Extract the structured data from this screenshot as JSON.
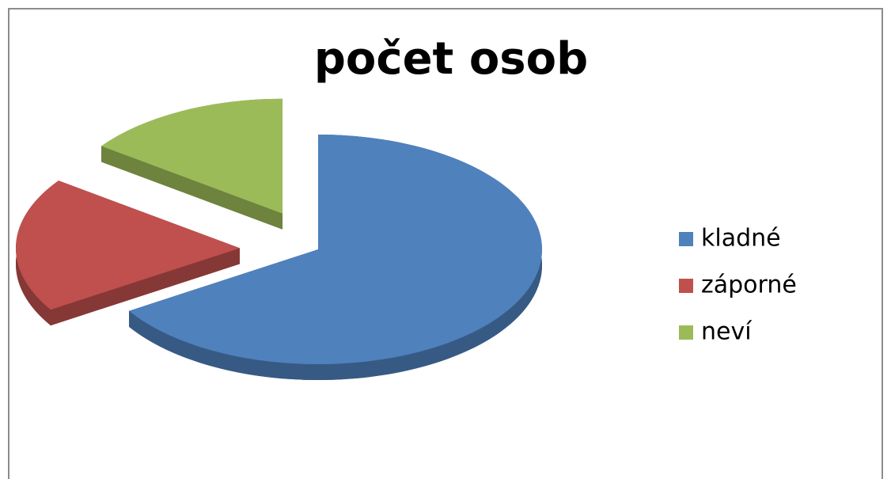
{
  "chart_data": {
    "type": "pie",
    "title": "počet osob",
    "categories": [
      "kladné",
      "záporné",
      "neví"
    ],
    "values": [
      66,
      19,
      15
    ],
    "colors": [
      "#4f81bd",
      "#c0504d",
      "#9bbb59"
    ],
    "legend": "right"
  }
}
